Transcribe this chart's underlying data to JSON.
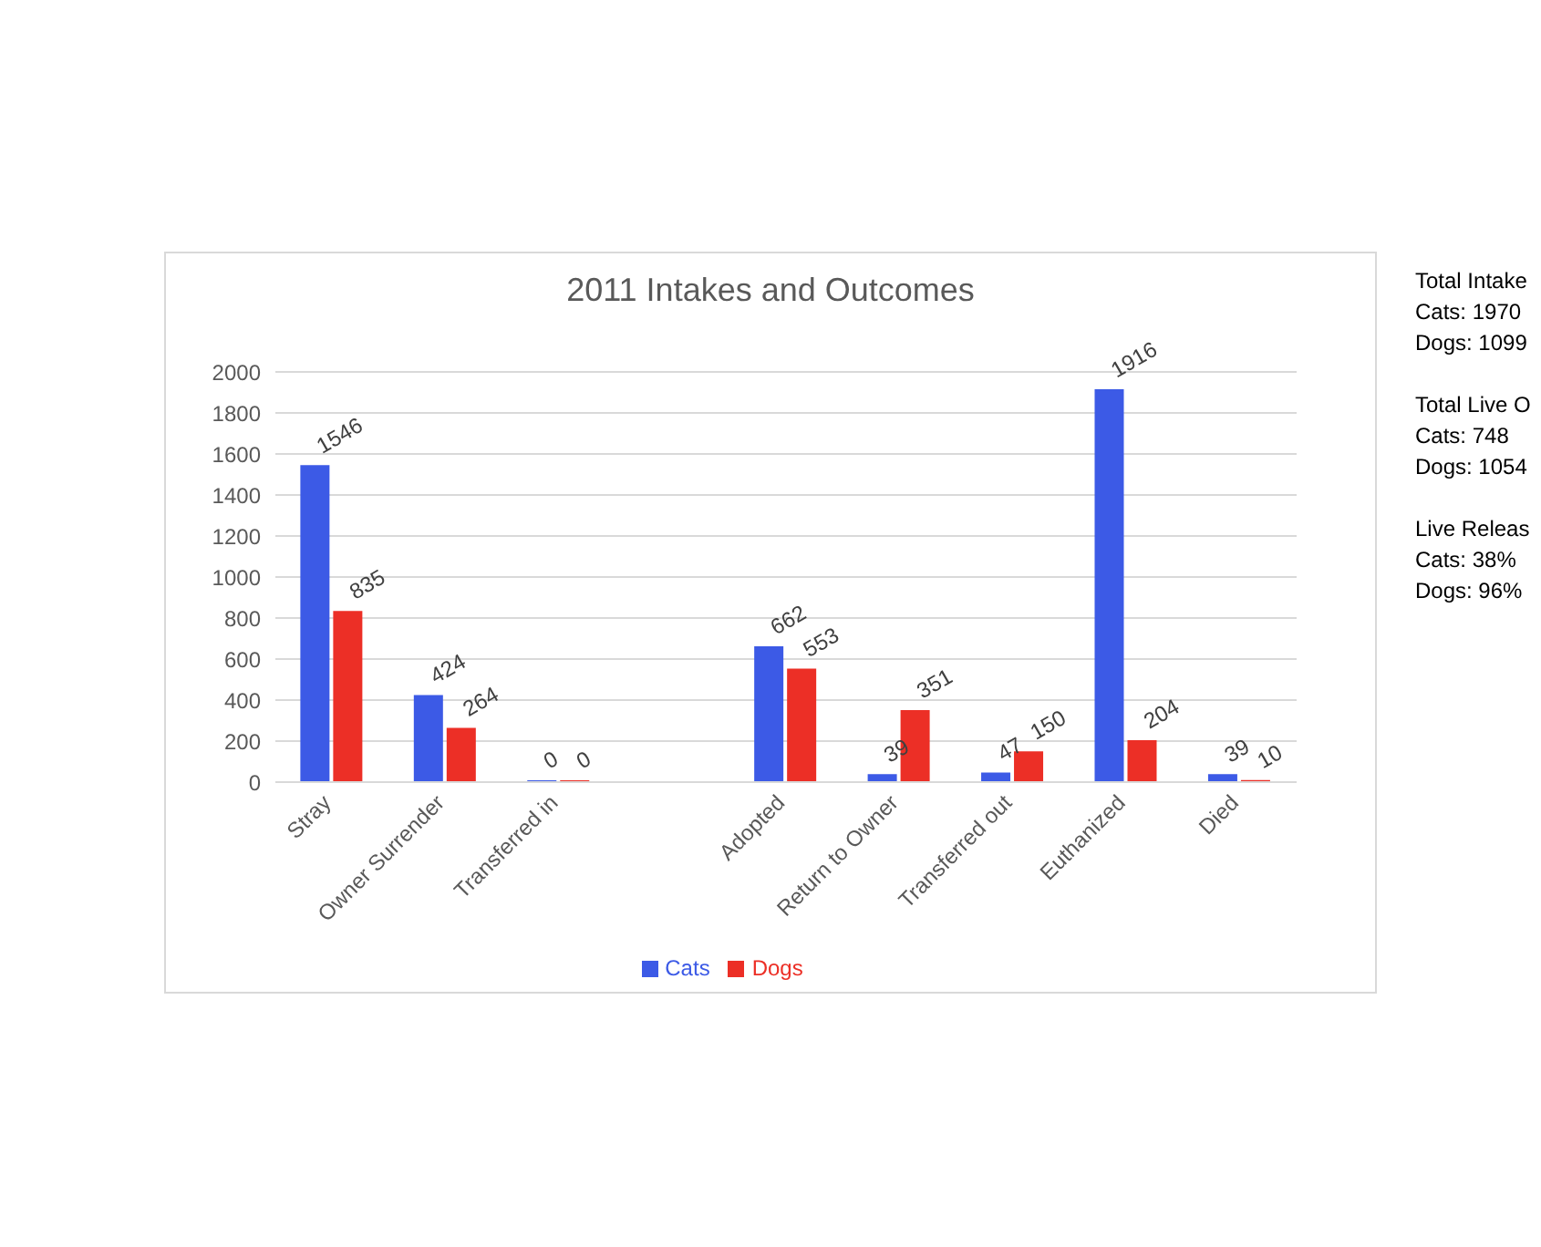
{
  "chart_data": {
    "type": "bar",
    "title": "2011 Intakes and Outcomes",
    "categories": [
      "Stray",
      "Owner Surrender",
      "Transferred in",
      null,
      "Adopted",
      "Return to Owner",
      "Transferred out",
      "Euthanized",
      "Died"
    ],
    "series": [
      {
        "name": "Cats",
        "color": "#3c5ae6",
        "values": [
          1546,
          424,
          0,
          null,
          662,
          39,
          47,
          1916,
          39
        ]
      },
      {
        "name": "Dogs",
        "color": "#ec2f26",
        "values": [
          835,
          264,
          0,
          null,
          553,
          351,
          150,
          204,
          10
        ]
      }
    ],
    "ylim": [
      0,
      2000
    ],
    "yticks": [
      0,
      200,
      400,
      600,
      800,
      1000,
      1200,
      1400,
      1600,
      1800,
      2000
    ],
    "grid": "y",
    "legend": "bottom",
    "data_labels": true,
    "annotations": [
      "Total Intake",
      "Cats: 1970",
      "Dogs: 1099",
      "Total Live O",
      "Cats: 748",
      "Dogs: 1054",
      "Live Releas",
      "Cats: 38%",
      "Dogs: 96%"
    ]
  }
}
